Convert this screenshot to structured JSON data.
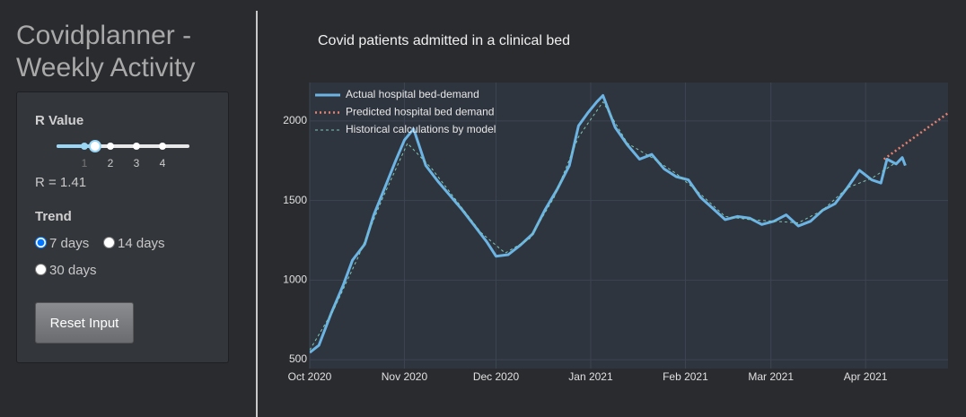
{
  "sidebar": {
    "title": "Covidplanner - Weekly Activity",
    "r_label": "R Value",
    "slider": {
      "ticks": [
        1,
        2,
        3,
        4
      ],
      "value": 1.41
    },
    "r_readout": "R = 1.41",
    "trend_label": "Trend",
    "trend_options": [
      "7 days",
      "14 days",
      "30 days"
    ],
    "trend_selected": 0,
    "reset_button": "Reset Input"
  },
  "chart_data": {
    "type": "line",
    "title": "Covid patients admitted in a clinical bed",
    "xlim": [
      "2020-10-01",
      "2021-04-28"
    ],
    "xticks": [
      {
        "value": "2020-10-01",
        "label": "Oct 2020"
      },
      {
        "value": "2020-11-01",
        "label": "Nov 2020"
      },
      {
        "value": "2020-12-01",
        "label": "Dec 2020"
      },
      {
        "value": "2021-01-01",
        "label": "Jan 2021"
      },
      {
        "value": "2021-02-01",
        "label": "Feb 2021"
      },
      {
        "value": "2021-03-01",
        "label": "Mar 2021"
      },
      {
        "value": "2021-04-01",
        "label": "Apr 2021"
      }
    ],
    "ylim": [
      444,
      2242
    ],
    "yticks": [
      500,
      1000,
      1500,
      2000
    ],
    "grid": true,
    "legend": "top-left",
    "series": [
      {
        "name": "Actual hospital bed-demand",
        "color": "#6cb4e4",
        "style": "solid",
        "x": [
          "2020-10-01",
          "2020-10-04",
          "2020-10-08",
          "2020-10-12",
          "2020-10-15",
          "2020-10-19",
          "2020-10-22",
          "2020-10-26",
          "2020-10-29",
          "2020-11-01",
          "2020-11-04",
          "2020-11-08",
          "2020-11-12",
          "2020-11-16",
          "2020-11-20",
          "2020-11-24",
          "2020-11-28",
          "2020-12-01",
          "2020-12-05",
          "2020-12-09",
          "2020-12-13",
          "2020-12-17",
          "2020-12-21",
          "2020-12-25",
          "2020-12-28",
          "2020-12-31",
          "2021-01-03",
          "2021-01-05",
          "2021-01-09",
          "2021-01-13",
          "2021-01-17",
          "2021-01-21",
          "2021-01-25",
          "2021-01-29",
          "2021-02-02",
          "2021-02-06",
          "2021-02-10",
          "2021-02-14",
          "2021-02-18",
          "2021-02-22",
          "2021-02-26",
          "2021-03-02",
          "2021-03-06",
          "2021-03-10",
          "2021-03-14",
          "2021-03-18",
          "2021-03-22",
          "2021-03-26",
          "2021-03-30",
          "2021-04-03",
          "2021-04-06",
          "2021-04-08",
          "2021-04-11",
          "2021-04-13",
          "2021-04-14"
        ],
        "values": [
          545,
          590,
          790,
          970,
          1125,
          1225,
          1410,
          1600,
          1745,
          1880,
          1950,
          1720,
          1620,
          1530,
          1440,
          1340,
          1240,
          1150,
          1160,
          1220,
          1290,
          1440,
          1570,
          1720,
          1970,
          2050,
          2120,
          2160,
          1960,
          1850,
          1760,
          1790,
          1700,
          1650,
          1630,
          1520,
          1450,
          1380,
          1400,
          1390,
          1350,
          1370,
          1410,
          1340,
          1370,
          1440,
          1480,
          1580,
          1690,
          1630,
          1610,
          1760,
          1730,
          1770,
          1720
        ]
      },
      {
        "name": "Predicted hospital bed demand",
        "color": "#e8806e",
        "style": "dot",
        "x": [
          "2021-04-07",
          "2021-04-28"
        ],
        "values": [
          1760,
          2050
        ]
      },
      {
        "name": "Historical calculations by model",
        "color": "#7fc8b4",
        "style": "dash",
        "x": [
          "2020-10-01",
          "2020-10-09",
          "2020-10-17",
          "2020-10-25",
          "2020-11-02",
          "2020-11-10",
          "2020-11-18",
          "2020-11-26",
          "2020-12-04",
          "2020-12-12",
          "2020-12-20",
          "2020-12-28",
          "2021-01-05",
          "2021-01-13",
          "2021-01-21",
          "2021-01-29",
          "2021-02-06",
          "2021-02-14",
          "2021-02-22",
          "2021-03-02",
          "2021-03-10",
          "2021-03-18",
          "2021-03-26",
          "2021-04-03",
          "2021-04-11"
        ],
        "values": [
          560,
          820,
          1150,
          1520,
          1860,
          1700,
          1500,
          1300,
          1170,
          1260,
          1520,
          1900,
          2120,
          1860,
          1770,
          1670,
          1540,
          1400,
          1380,
          1370,
          1360,
          1440,
          1580,
          1640,
          1740
        ]
      }
    ]
  }
}
